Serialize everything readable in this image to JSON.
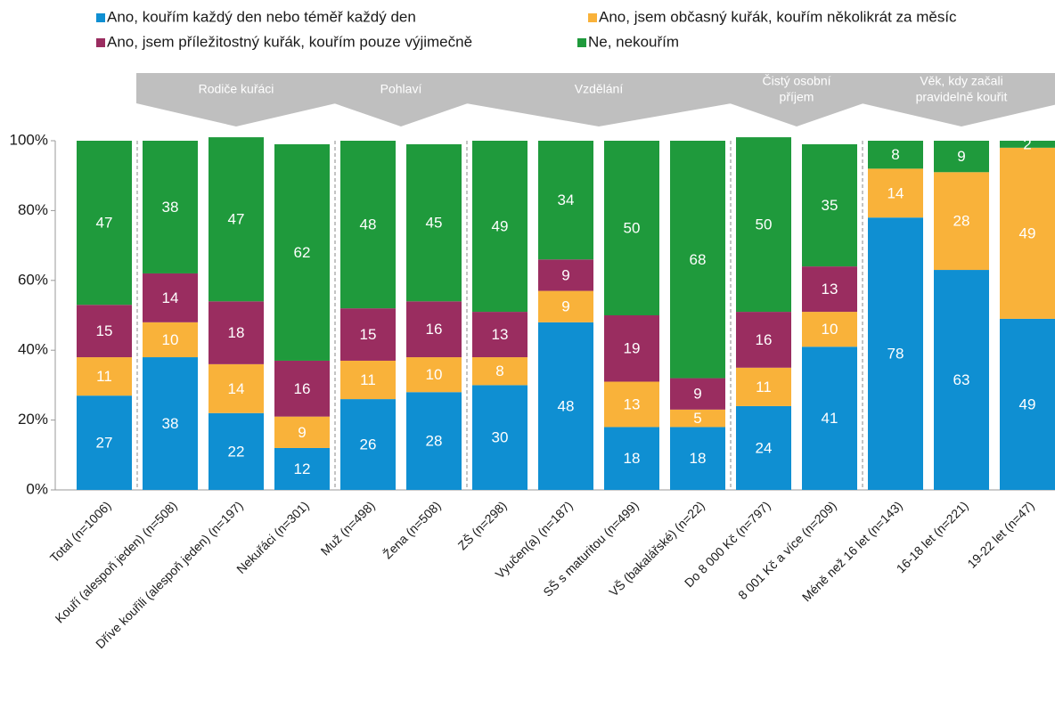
{
  "chart_data": {
    "type": "stacked_bar",
    "categories": [
      "Total (n=1006)",
      "Kouří (alespoň jeden) (n=508)",
      "Dříve kouřili (alespoň jeden) (n=197)",
      "Nekuřáci  (n=301)",
      "Muž (n=498)",
      "Žena (n=508)",
      "ZŠ (n=298)",
      "Vyučen(a)  (n=187)",
      "SŠ s maturitou (n=499)",
      "VŠ (bakalářské)  (n=22)",
      "Do 8 000 Kč (n=797)",
      "8 001 Kč a více  (n=209)",
      "Méně než 16 let (n=143)",
      "16-18 let (n=221)",
      "19-22 let (n=47)"
    ],
    "series": [
      {
        "name": "Ano, kouřím každý den nebo téměř každý den",
        "color": "#0f8fd2",
        "values": [
          27,
          38,
          22,
          12,
          26,
          28,
          30,
          48,
          18,
          18,
          24,
          41,
          78,
          63,
          49
        ]
      },
      {
        "name": "Ano, jsem občasný kuřák, kouřím několikrát za měsíc",
        "color": "#f9b23a",
        "values": [
          11,
          10,
          14,
          9,
          11,
          10,
          8,
          9,
          13,
          5,
          11,
          10,
          14,
          28,
          49
        ]
      },
      {
        "name": "Ano, jsem příležitostný  kuřák, kouřím pouze výjimečně",
        "color": "#9a2d60",
        "values": [
          15,
          14,
          18,
          16,
          15,
          16,
          13,
          9,
          19,
          9,
          16,
          13,
          null,
          null,
          null
        ]
      },
      {
        "name": "Ne, nekouřím",
        "color": "#1f9a3c",
        "values": [
          47,
          38,
          47,
          62,
          48,
          45,
          49,
          34,
          50,
          68,
          50,
          35,
          8,
          9,
          2
        ]
      }
    ],
    "groups": [
      [
        "Rodiče kuřáci"
      ],
      [
        "Pohlaví"
      ],
      [
        "Vzdělání"
      ],
      [
        "Čistý osobní",
        "příjem"
      ],
      [
        "Věk, kdy začali",
        "pravidelně kouřit"
      ]
    ],
    "ylim": [
      0,
      100
    ],
    "yticks": [
      {
        "value": 0,
        "label": "0%"
      },
      {
        "value": 20,
        "label": "20%"
      },
      {
        "value": 40,
        "label": "40%"
      },
      {
        "value": 60,
        "label": "60%"
      },
      {
        "value": 80,
        "label": "80%"
      },
      {
        "value": 100,
        "label": "100%"
      }
    ]
  }
}
